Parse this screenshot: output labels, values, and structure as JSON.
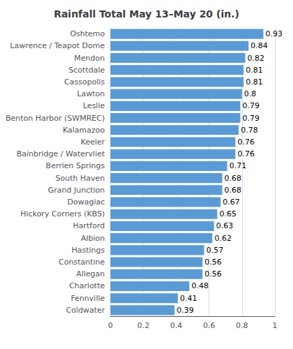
{
  "chart_data": {
    "type": "bar",
    "orientation": "horizontal",
    "title": "Rainfall Total May 13–May 20 (in.)",
    "categories": [
      "Coldwater",
      "Fennville",
      "Charlotte",
      "Allegan",
      "Constantine",
      "Hastings",
      "Albion",
      "Hartford",
      "Hickory Corners (KBS)",
      "Dowagiac",
      "Grand Junction",
      "South Haven",
      "Berrien Springs",
      "Bainbridge / Watervliet",
      "Keeler",
      "Kalamazoo",
      "Benton Harbor (SWMREC)",
      "Leslie",
      "Lawton",
      "Cassopolis",
      "Scottdale",
      "Mendon",
      "Lawrence / Teapot Dome",
      "Oshtemo"
    ],
    "values": [
      0.39,
      0.41,
      0.48,
      0.56,
      0.56,
      0.57,
      0.62,
      0.63,
      0.65,
      0.67,
      0.68,
      0.68,
      0.71,
      0.76,
      0.76,
      0.78,
      0.79,
      0.79,
      0.8,
      0.81,
      0.81,
      0.82,
      0.84,
      0.93
    ],
    "color": "#5B9BD5",
    "xlim": [
      0,
      1.0
    ],
    "xticks": [
      0,
      0.2,
      0.4,
      0.6,
      0.8,
      1
    ],
    "grid": true,
    "data_labels": true
  }
}
